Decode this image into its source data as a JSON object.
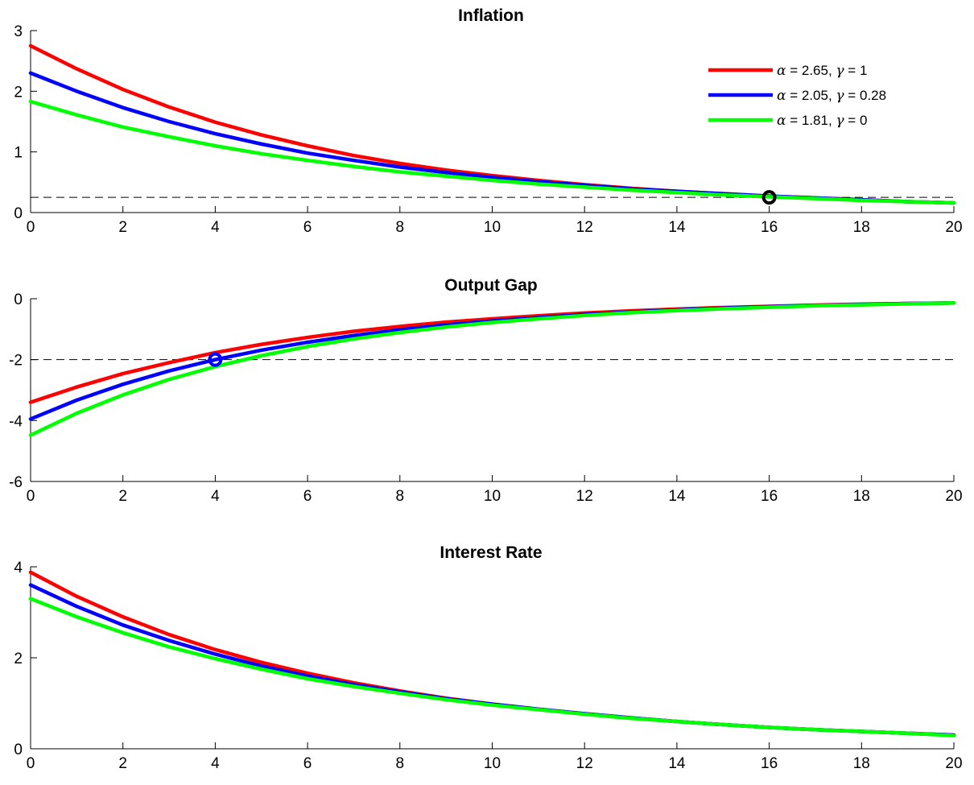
{
  "chart_data": [
    {
      "type": "line",
      "title": "Inflation",
      "xlabel": "",
      "ylabel": "",
      "xlim": [
        0,
        20
      ],
      "ylim": [
        0,
        3
      ],
      "xticks": [
        "0",
        "2",
        "4",
        "6",
        "8",
        "10",
        "12",
        "14",
        "16",
        "18",
        "20"
      ],
      "yticks": [
        "0",
        "1",
        "2",
        "3"
      ],
      "x": [
        0,
        1,
        2,
        3,
        4,
        5,
        6,
        7,
        8,
        9,
        10,
        11,
        12,
        13,
        14,
        15,
        16,
        17,
        18,
        19,
        20
      ],
      "reference_line": {
        "y": 0.25,
        "style": "dashed",
        "color": "#000000"
      },
      "marker": {
        "x": 16,
        "y": 0.25,
        "shape": "circle",
        "color": "#000000"
      },
      "legend": {
        "placement": "top-right"
      },
      "series": [
        {
          "name": "α = 2.65, γ = 1",
          "color": "#ff0000",
          "values": [
            2.75,
            2.37,
            2.03,
            1.74,
            1.49,
            1.28,
            1.1,
            0.94,
            0.81,
            0.7,
            0.61,
            0.53,
            0.46,
            0.4,
            0.35,
            0.31,
            0.27,
            0.24,
            0.21,
            0.18,
            0.16
          ]
        },
        {
          "name": "α = 2.05, γ = 0.28",
          "color": "#0000ff",
          "values": [
            2.3,
            2.0,
            1.73,
            1.5,
            1.3,
            1.13,
            0.98,
            0.86,
            0.75,
            0.66,
            0.58,
            0.51,
            0.45,
            0.39,
            0.35,
            0.31,
            0.27,
            0.24,
            0.21,
            0.18,
            0.16
          ]
        },
        {
          "name": "α = 1.81, γ = 0",
          "color": "#00ff00",
          "values": [
            1.83,
            1.61,
            1.41,
            1.25,
            1.1,
            0.97,
            0.86,
            0.76,
            0.67,
            0.6,
            0.53,
            0.47,
            0.42,
            0.37,
            0.33,
            0.29,
            0.26,
            0.23,
            0.2,
            0.18,
            0.16
          ]
        }
      ]
    },
    {
      "type": "line",
      "title": "Output Gap",
      "xlabel": "",
      "ylabel": "",
      "xlim": [
        0,
        20
      ],
      "ylim": [
        -6,
        0
      ],
      "xticks": [
        "0",
        "2",
        "4",
        "6",
        "8",
        "10",
        "12",
        "14",
        "16",
        "18",
        "20"
      ],
      "yticks": [
        "-6",
        "-4",
        "-2",
        "0"
      ],
      "x": [
        0,
        1,
        2,
        3,
        4,
        5,
        6,
        7,
        8,
        9,
        10,
        11,
        12,
        13,
        14,
        15,
        16,
        17,
        18,
        19,
        20
      ],
      "reference_line": {
        "y": -2,
        "style": "dashed",
        "color": "#000000"
      },
      "marker": {
        "x": 4,
        "y": -2,
        "shape": "circle",
        "color": "#0000ff"
      },
      "series": [
        {
          "name": "α = 2.65, γ = 1",
          "color": "#ff0000",
          "values": [
            -3.4,
            -2.9,
            -2.46,
            -2.1,
            -1.77,
            -1.5,
            -1.27,
            -1.07,
            -0.91,
            -0.77,
            -0.66,
            -0.56,
            -0.47,
            -0.4,
            -0.34,
            -0.29,
            -0.25,
            -0.21,
            -0.18,
            -0.16,
            -0.14
          ]
        },
        {
          "name": "α = 2.05, γ = 0.28",
          "color": "#0000ff",
          "values": [
            -3.95,
            -3.33,
            -2.81,
            -2.37,
            -2.0,
            -1.69,
            -1.43,
            -1.21,
            -1.02,
            -0.86,
            -0.73,
            -0.62,
            -0.52,
            -0.44,
            -0.37,
            -0.31,
            -0.26,
            -0.22,
            -0.19,
            -0.16,
            -0.14
          ]
        },
        {
          "name": "α = 1.81, γ = 0",
          "color": "#00ff00",
          "values": [
            -4.48,
            -3.76,
            -3.16,
            -2.65,
            -2.23,
            -1.87,
            -1.57,
            -1.32,
            -1.11,
            -0.93,
            -0.78,
            -0.66,
            -0.55,
            -0.46,
            -0.39,
            -0.33,
            -0.28,
            -0.23,
            -0.2,
            -0.17,
            -0.14
          ]
        }
      ]
    },
    {
      "type": "line",
      "title": "Interest Rate",
      "xlabel": "",
      "ylabel": "",
      "xlim": [
        0,
        20
      ],
      "ylim": [
        0,
        4
      ],
      "xticks": [
        "0",
        "2",
        "4",
        "6",
        "8",
        "10",
        "12",
        "14",
        "16",
        "18",
        "20"
      ],
      "yticks": [
        "0",
        "2",
        "4"
      ],
      "x": [
        0,
        1,
        2,
        3,
        4,
        5,
        6,
        7,
        8,
        9,
        10,
        11,
        12,
        13,
        14,
        15,
        16,
        17,
        18,
        19,
        20
      ],
      "series": [
        {
          "name": "α = 2.65, γ = 1",
          "color": "#ff0000",
          "values": [
            3.88,
            3.35,
            2.9,
            2.51,
            2.18,
            1.9,
            1.66,
            1.45,
            1.27,
            1.11,
            0.98,
            0.87,
            0.77,
            0.68,
            0.6,
            0.53,
            0.47,
            0.42,
            0.38,
            0.34,
            0.3
          ]
        },
        {
          "name": "α = 2.05, γ = 0.28",
          "color": "#0000ff",
          "values": [
            3.6,
            3.13,
            2.72,
            2.38,
            2.08,
            1.82,
            1.6,
            1.41,
            1.25,
            1.1,
            0.98,
            0.87,
            0.77,
            0.68,
            0.6,
            0.53,
            0.47,
            0.42,
            0.38,
            0.34,
            0.3
          ]
        },
        {
          "name": "α = 1.81, γ = 0",
          "color": "#00ff00",
          "values": [
            3.3,
            2.9,
            2.55,
            2.24,
            1.98,
            1.75,
            1.54,
            1.37,
            1.22,
            1.08,
            0.96,
            0.86,
            0.76,
            0.67,
            0.6,
            0.53,
            0.47,
            0.42,
            0.38,
            0.34,
            0.29
          ]
        }
      ]
    }
  ]
}
